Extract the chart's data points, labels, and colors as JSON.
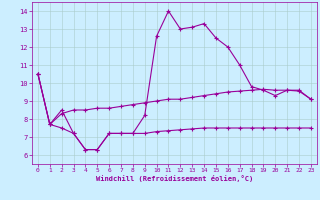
{
  "xlabel": "Windchill (Refroidissement éolien,°C)",
  "xlim": [
    -0.5,
    23.5
  ],
  "ylim": [
    5.5,
    14.5
  ],
  "yticks": [
    6,
    7,
    8,
    9,
    10,
    11,
    12,
    13,
    14
  ],
  "xticks": [
    0,
    1,
    2,
    3,
    4,
    5,
    6,
    7,
    8,
    9,
    10,
    11,
    12,
    13,
    14,
    15,
    16,
    17,
    18,
    19,
    20,
    21,
    22,
    23
  ],
  "background_color": "#cceeff",
  "line_color": "#990099",
  "line1_x": [
    0,
    1,
    2,
    3,
    4,
    5,
    6,
    7,
    8,
    9,
    10,
    11,
    12,
    13,
    14,
    15,
    16,
    17,
    18,
    19,
    20,
    21,
    22,
    23
  ],
  "line1_y": [
    10.5,
    7.7,
    8.3,
    8.5,
    8.5,
    8.6,
    8.6,
    8.7,
    8.8,
    8.9,
    9.0,
    9.1,
    9.1,
    9.2,
    9.3,
    9.4,
    9.5,
    9.55,
    9.6,
    9.65,
    9.6,
    9.6,
    9.55,
    9.1
  ],
  "line2_x": [
    0,
    1,
    2,
    3,
    4,
    5,
    6,
    7,
    8,
    9,
    10,
    11,
    12,
    13,
    14,
    15,
    16,
    17,
    18,
    19,
    20,
    21,
    22,
    23
  ],
  "line2_y": [
    10.5,
    7.7,
    8.5,
    7.2,
    6.3,
    6.3,
    7.2,
    7.2,
    7.2,
    8.2,
    12.6,
    14.0,
    13.0,
    13.1,
    13.3,
    12.5,
    12.0,
    11.0,
    9.8,
    9.6,
    9.3,
    9.6,
    9.6,
    9.1
  ],
  "line3_x": [
    0,
    1,
    2,
    3,
    4,
    5,
    6,
    7,
    8,
    9,
    10,
    11,
    12,
    13,
    14,
    15,
    16,
    17,
    18,
    19,
    20,
    21,
    22,
    23
  ],
  "line3_y": [
    10.5,
    7.7,
    7.5,
    7.2,
    6.3,
    6.3,
    7.2,
    7.2,
    7.2,
    7.2,
    7.3,
    7.35,
    7.4,
    7.45,
    7.5,
    7.5,
    7.5,
    7.5,
    7.5,
    7.5,
    7.5,
    7.5,
    7.5,
    7.5
  ]
}
